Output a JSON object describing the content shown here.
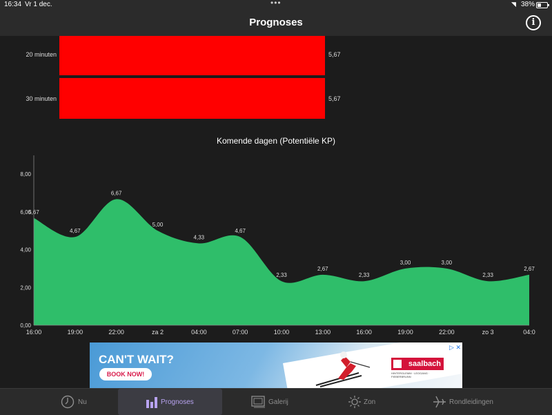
{
  "status_bar": {
    "time": "16:34",
    "date": "Vr 1 dec.",
    "battery": "38%"
  },
  "header": {
    "title": "Prognoses"
  },
  "short_term": {
    "bar_color": "#ff0000",
    "rows": [
      {
        "label": "20 minuten",
        "value": "5,67"
      },
      {
        "label": "30 minuten",
        "value": "5,67"
      }
    ]
  },
  "chart_data": {
    "type": "area",
    "title": "Komende dagen (Potentiële KP)",
    "color": "#2fbe6a",
    "x": [
      "16:00",
      "19:00",
      "22:00",
      "za 2",
      "04:00",
      "07:00",
      "10:00",
      "13:00",
      "16:00",
      "19:00",
      "22:00",
      "zo 3",
      "04:0"
    ],
    "values": [
      5.67,
      4.67,
      6.67,
      5.0,
      4.33,
      4.67,
      2.33,
      2.67,
      2.33,
      3.0,
      3.0,
      2.33,
      2.67
    ],
    "value_labels": [
      "5,67",
      "4,67",
      "6,67",
      "5,00",
      "4,33",
      "4,67",
      "2,33",
      "2,67",
      "2,33",
      "3,00",
      "3,00",
      "2,33",
      "2,67"
    ],
    "y_ticks": [
      0,
      2,
      4,
      6,
      8
    ],
    "y_tick_labels": [
      "0,00",
      "2,00",
      "4,00",
      "6,00",
      "8,00"
    ],
    "ylim": [
      0,
      8
    ],
    "grid": false,
    "legend": "none"
  },
  "ad": {
    "headline": "CAN'T WAIT?",
    "button": "BOOK NOW!",
    "brand": "saalbach",
    "brand_sub": "HINTERGLEMM · LEOGANG · FIEBERBRUNN",
    "adchoices": "▷ ✕"
  },
  "tabs": [
    {
      "label": "Nu",
      "icon": "clock-icon",
      "active": false
    },
    {
      "label": "Prognoses",
      "icon": "bar-chart-icon",
      "active": true
    },
    {
      "label": "Galerij",
      "icon": "gallery-icon",
      "active": false
    },
    {
      "label": "Zon",
      "icon": "sun-icon",
      "active": false
    },
    {
      "label": "Rondleidingen",
      "icon": "airplane-icon",
      "active": false
    }
  ]
}
